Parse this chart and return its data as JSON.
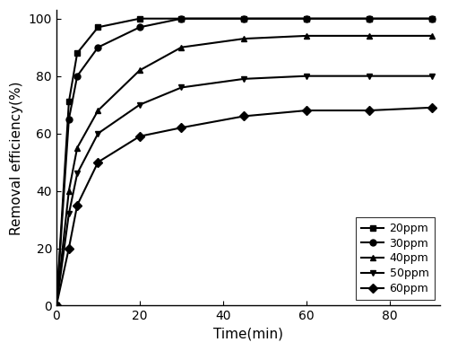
{
  "series": {
    "20ppm": {
      "x": [
        0,
        3,
        5,
        10,
        20,
        30,
        45,
        60,
        75,
        90
      ],
      "y": [
        0,
        71,
        88,
        97,
        100,
        100,
        100,
        100,
        100,
        100
      ],
      "marker": "s",
      "label": "20ppm"
    },
    "30ppm": {
      "x": [
        0,
        3,
        5,
        10,
        20,
        30,
        45,
        60,
        75,
        90
      ],
      "y": [
        0,
        65,
        80,
        90,
        97,
        100,
        100,
        100,
        100,
        100
      ],
      "marker": "o",
      "label": "30ppm"
    },
    "40ppm": {
      "x": [
        0,
        3,
        5,
        10,
        20,
        30,
        45,
        60,
        75,
        90
      ],
      "y": [
        0,
        40,
        55,
        68,
        82,
        90,
        93,
        94,
        94,
        94
      ],
      "marker": "^",
      "label": "40ppm"
    },
    "50ppm": {
      "x": [
        0,
        3,
        5,
        10,
        20,
        30,
        45,
        60,
        75,
        90
      ],
      "y": [
        0,
        32,
        46,
        60,
        70,
        76,
        79,
        80,
        80,
        80
      ],
      "marker": "v",
      "label": "50ppm"
    },
    "60ppm": {
      "x": [
        0,
        3,
        5,
        10,
        20,
        30,
        45,
        60,
        75,
        90
      ],
      "y": [
        0,
        20,
        35,
        50,
        59,
        62,
        66,
        68,
        68,
        69
      ],
      "marker": "D",
      "label": "60ppm"
    }
  },
  "xlabel": "Time(min)",
  "ylabel": "Removal efficiency(%)",
  "xlim": [
    0,
    92
  ],
  "ylim": [
    0,
    103
  ],
  "xticks": [
    0,
    20,
    40,
    60,
    80
  ],
  "yticks": [
    0,
    20,
    40,
    60,
    80,
    100
  ],
  "legend_loc": "lower right",
  "line_color": "#000000",
  "marker_size": 5,
  "line_width": 1.5,
  "background_color": "#ffffff",
  "tick_fontsize": 10,
  "label_fontsize": 11,
  "legend_fontsize": 9
}
